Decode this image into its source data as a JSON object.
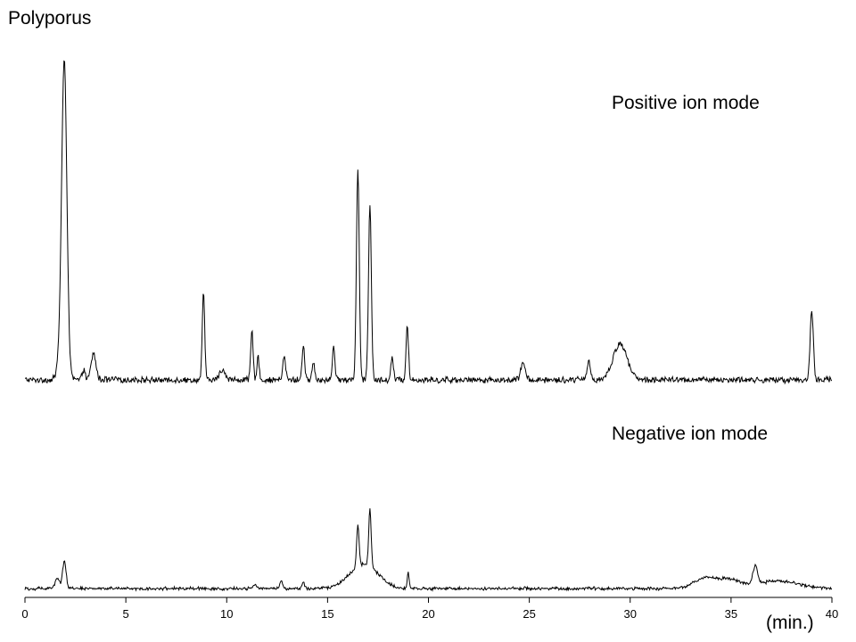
{
  "chart_data": {
    "type": "line",
    "title": "Polyporus",
    "xlabel": "(min.)",
    "xlim": [
      0,
      40
    ],
    "x_ticks": [
      "0",
      "5",
      "10",
      "15",
      "20",
      "25",
      "30",
      "35",
      "40"
    ],
    "baseline": 0.03,
    "grid": false,
    "series": [
      {
        "name": "Positive ion mode",
        "noise": 0.008,
        "peaks": [
          {
            "x": 1.95,
            "h": 0.96,
            "w": 0.13
          },
          {
            "x": 1.75,
            "h": 0.05,
            "w": 0.15
          },
          {
            "x": 2.9,
            "h": 0.03,
            "w": 0.08
          },
          {
            "x": 3.4,
            "h": 0.08,
            "w": 0.12
          },
          {
            "x": 8.85,
            "h": 0.27,
            "w": 0.06
          },
          {
            "x": 9.8,
            "h": 0.03,
            "w": 0.15
          },
          {
            "x": 11.25,
            "h": 0.15,
            "w": 0.06
          },
          {
            "x": 11.55,
            "h": 0.08,
            "w": 0.05
          },
          {
            "x": 12.85,
            "h": 0.07,
            "w": 0.07
          },
          {
            "x": 13.8,
            "h": 0.11,
            "w": 0.06
          },
          {
            "x": 14.3,
            "h": 0.05,
            "w": 0.07
          },
          {
            "x": 15.3,
            "h": 0.1,
            "w": 0.06
          },
          {
            "x": 16.5,
            "h": 0.65,
            "w": 0.07
          },
          {
            "x": 17.1,
            "h": 0.54,
            "w": 0.07
          },
          {
            "x": 18.2,
            "h": 0.07,
            "w": 0.06
          },
          {
            "x": 18.95,
            "h": 0.17,
            "w": 0.06
          },
          {
            "x": 24.7,
            "h": 0.05,
            "w": 0.12
          },
          {
            "x": 27.95,
            "h": 0.06,
            "w": 0.08
          },
          {
            "x": 29.5,
            "h": 0.11,
            "w": 0.35
          },
          {
            "x": 39.0,
            "h": 0.21,
            "w": 0.08
          }
        ]
      },
      {
        "name": "Negative ion mode",
        "noise": 0.007,
        "peaks": [
          {
            "x": 1.6,
            "h": 0.07,
            "w": 0.1
          },
          {
            "x": 1.95,
            "h": 0.18,
            "w": 0.09
          },
          {
            "x": 11.4,
            "h": 0.03,
            "w": 0.08
          },
          {
            "x": 12.7,
            "h": 0.05,
            "w": 0.06
          },
          {
            "x": 13.8,
            "h": 0.04,
            "w": 0.06
          },
          {
            "x": 16.5,
            "h": 0.28,
            "w": 0.06
          },
          {
            "x": 17.1,
            "h": 0.38,
            "w": 0.06
          },
          {
            "x": 16.8,
            "h": 0.16,
            "w": 0.7
          },
          {
            "x": 19.0,
            "h": 0.1,
            "w": 0.05
          },
          {
            "x": 33.8,
            "h": 0.07,
            "w": 0.6
          },
          {
            "x": 35.0,
            "h": 0.05,
            "w": 0.5
          },
          {
            "x": 36.2,
            "h": 0.12,
            "w": 0.12
          },
          {
            "x": 37.3,
            "h": 0.05,
            "w": 1.0
          }
        ]
      }
    ]
  }
}
